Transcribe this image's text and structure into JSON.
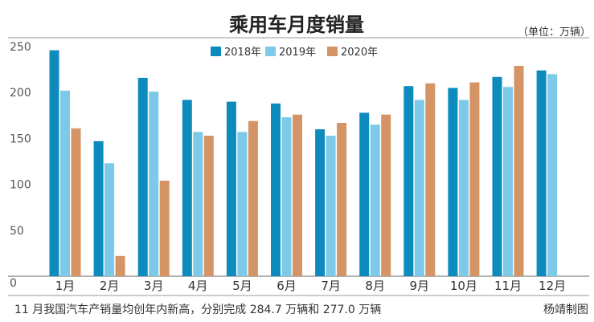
{
  "chart_data": {
    "type": "bar",
    "title": "乘用车月度销量",
    "unit_label": "（单位：万辆）",
    "categories": [
      "1月",
      "2月",
      "3月",
      "4月",
      "5月",
      "6月",
      "7月",
      "8月",
      "9月",
      "10月",
      "11月",
      "12月"
    ],
    "series": [
      {
        "name": "2018年",
        "color": "#0d8bbd",
        "values": [
          246,
          147,
          216,
          192,
          190,
          188,
          160,
          178,
          207,
          205,
          217,
          224
        ]
      },
      {
        "name": "2019年",
        "color": "#7dc9e8",
        "values": [
          202,
          123,
          201,
          157,
          157,
          173,
          153,
          165,
          192,
          192,
          206,
          220
        ]
      },
      {
        "name": "2020年",
        "color": "#d59465",
        "values": [
          161,
          22,
          104,
          153,
          169,
          176,
          167,
          176,
          210,
          211,
          229,
          null
        ]
      }
    ],
    "ylim": [
      0,
      250
    ],
    "yticks": [
      0,
      50,
      100,
      150,
      200,
      250
    ],
    "grid": false,
    "legend_position": "top-center"
  },
  "footer": {
    "caption": "11 月我国汽车产销量均创年内新高，分别完成 284.7 万辆和 277.0 万辆",
    "credit": "杨靖制图"
  }
}
